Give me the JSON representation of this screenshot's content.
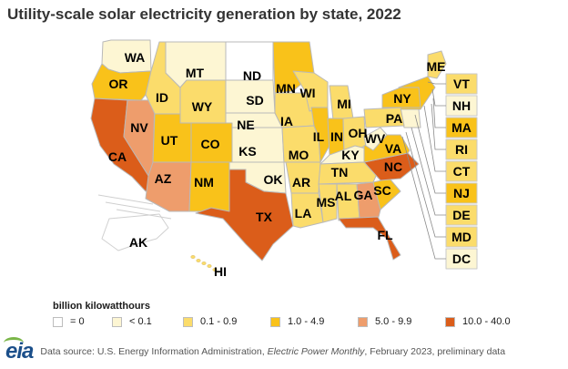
{
  "title": "Utility-scale solar electricity generation by state, 2022",
  "legend": {
    "title": "billion kilowatthours",
    "items": [
      {
        "label": "= 0",
        "color": "#ffffff"
      },
      {
        "label": "< 0.1",
        "color": "#fdf6d3"
      },
      {
        "label": "0.1 - 0.9",
        "color": "#fbdc6b"
      },
      {
        "label": "1.0 - 4.9",
        "color": "#f9c21a"
      },
      {
        "label": "5.0 - 9.9",
        "color": "#ee9d6c"
      },
      {
        "label": "10.0 - 40.0",
        "color": "#db5d1a"
      }
    ]
  },
  "states": [
    {
      "abbr": "WA",
      "bin": 1
    },
    {
      "abbr": "OR",
      "bin": 3
    },
    {
      "abbr": "CA",
      "bin": 5
    },
    {
      "abbr": "NV",
      "bin": 4
    },
    {
      "abbr": "ID",
      "bin": 2
    },
    {
      "abbr": "MT",
      "bin": 1
    },
    {
      "abbr": "WY",
      "bin": 2
    },
    {
      "abbr": "UT",
      "bin": 3
    },
    {
      "abbr": "AZ",
      "bin": 4
    },
    {
      "abbr": "CO",
      "bin": 3
    },
    {
      "abbr": "NM",
      "bin": 3
    },
    {
      "abbr": "ND",
      "bin": 0
    },
    {
      "abbr": "SD",
      "bin": 1
    },
    {
      "abbr": "NE",
      "bin": 1
    },
    {
      "abbr": "KS",
      "bin": 1
    },
    {
      "abbr": "OK",
      "bin": 1
    },
    {
      "abbr": "TX",
      "bin": 5
    },
    {
      "abbr": "MN",
      "bin": 3
    },
    {
      "abbr": "IA",
      "bin": 2
    },
    {
      "abbr": "MO",
      "bin": 2
    },
    {
      "abbr": "AR",
      "bin": 2
    },
    {
      "abbr": "LA",
      "bin": 2
    },
    {
      "abbr": "WI",
      "bin": 2
    },
    {
      "abbr": "IL",
      "bin": 3
    },
    {
      "abbr": "MI",
      "bin": 2
    },
    {
      "abbr": "IN",
      "bin": 3
    },
    {
      "abbr": "OH",
      "bin": 2
    },
    {
      "abbr": "KY",
      "bin": 1
    },
    {
      "abbr": "TN",
      "bin": 2
    },
    {
      "abbr": "MS",
      "bin": 2
    },
    {
      "abbr": "AL",
      "bin": 2
    },
    {
      "abbr": "GA",
      "bin": 4
    },
    {
      "abbr": "FL",
      "bin": 5
    },
    {
      "abbr": "SC",
      "bin": 3
    },
    {
      "abbr": "NC",
      "bin": 5
    },
    {
      "abbr": "VA",
      "bin": 3
    },
    {
      "abbr": "WV",
      "bin": 1
    },
    {
      "abbr": "PA",
      "bin": 2
    },
    {
      "abbr": "NY",
      "bin": 3
    },
    {
      "abbr": "ME",
      "bin": 2
    },
    {
      "abbr": "AK",
      "bin": 0
    },
    {
      "abbr": "HI",
      "bin": 2
    },
    {
      "abbr": "VT",
      "bin": 2
    },
    {
      "abbr": "NH",
      "bin": 1
    },
    {
      "abbr": "MA",
      "bin": 3
    },
    {
      "abbr": "RI",
      "bin": 2
    },
    {
      "abbr": "CT",
      "bin": 2
    },
    {
      "abbr": "NJ",
      "bin": 3
    },
    {
      "abbr": "DE",
      "bin": 2
    },
    {
      "abbr": "MD",
      "bin": 2
    },
    {
      "abbr": "DC",
      "bin": 1
    }
  ],
  "footer": {
    "logo": "eia",
    "source_prefix": "Data source: U.S. Energy Information Administration, ",
    "source_italic": "Electric Power Monthly",
    "source_suffix": ", February 2023, preliminary data"
  }
}
